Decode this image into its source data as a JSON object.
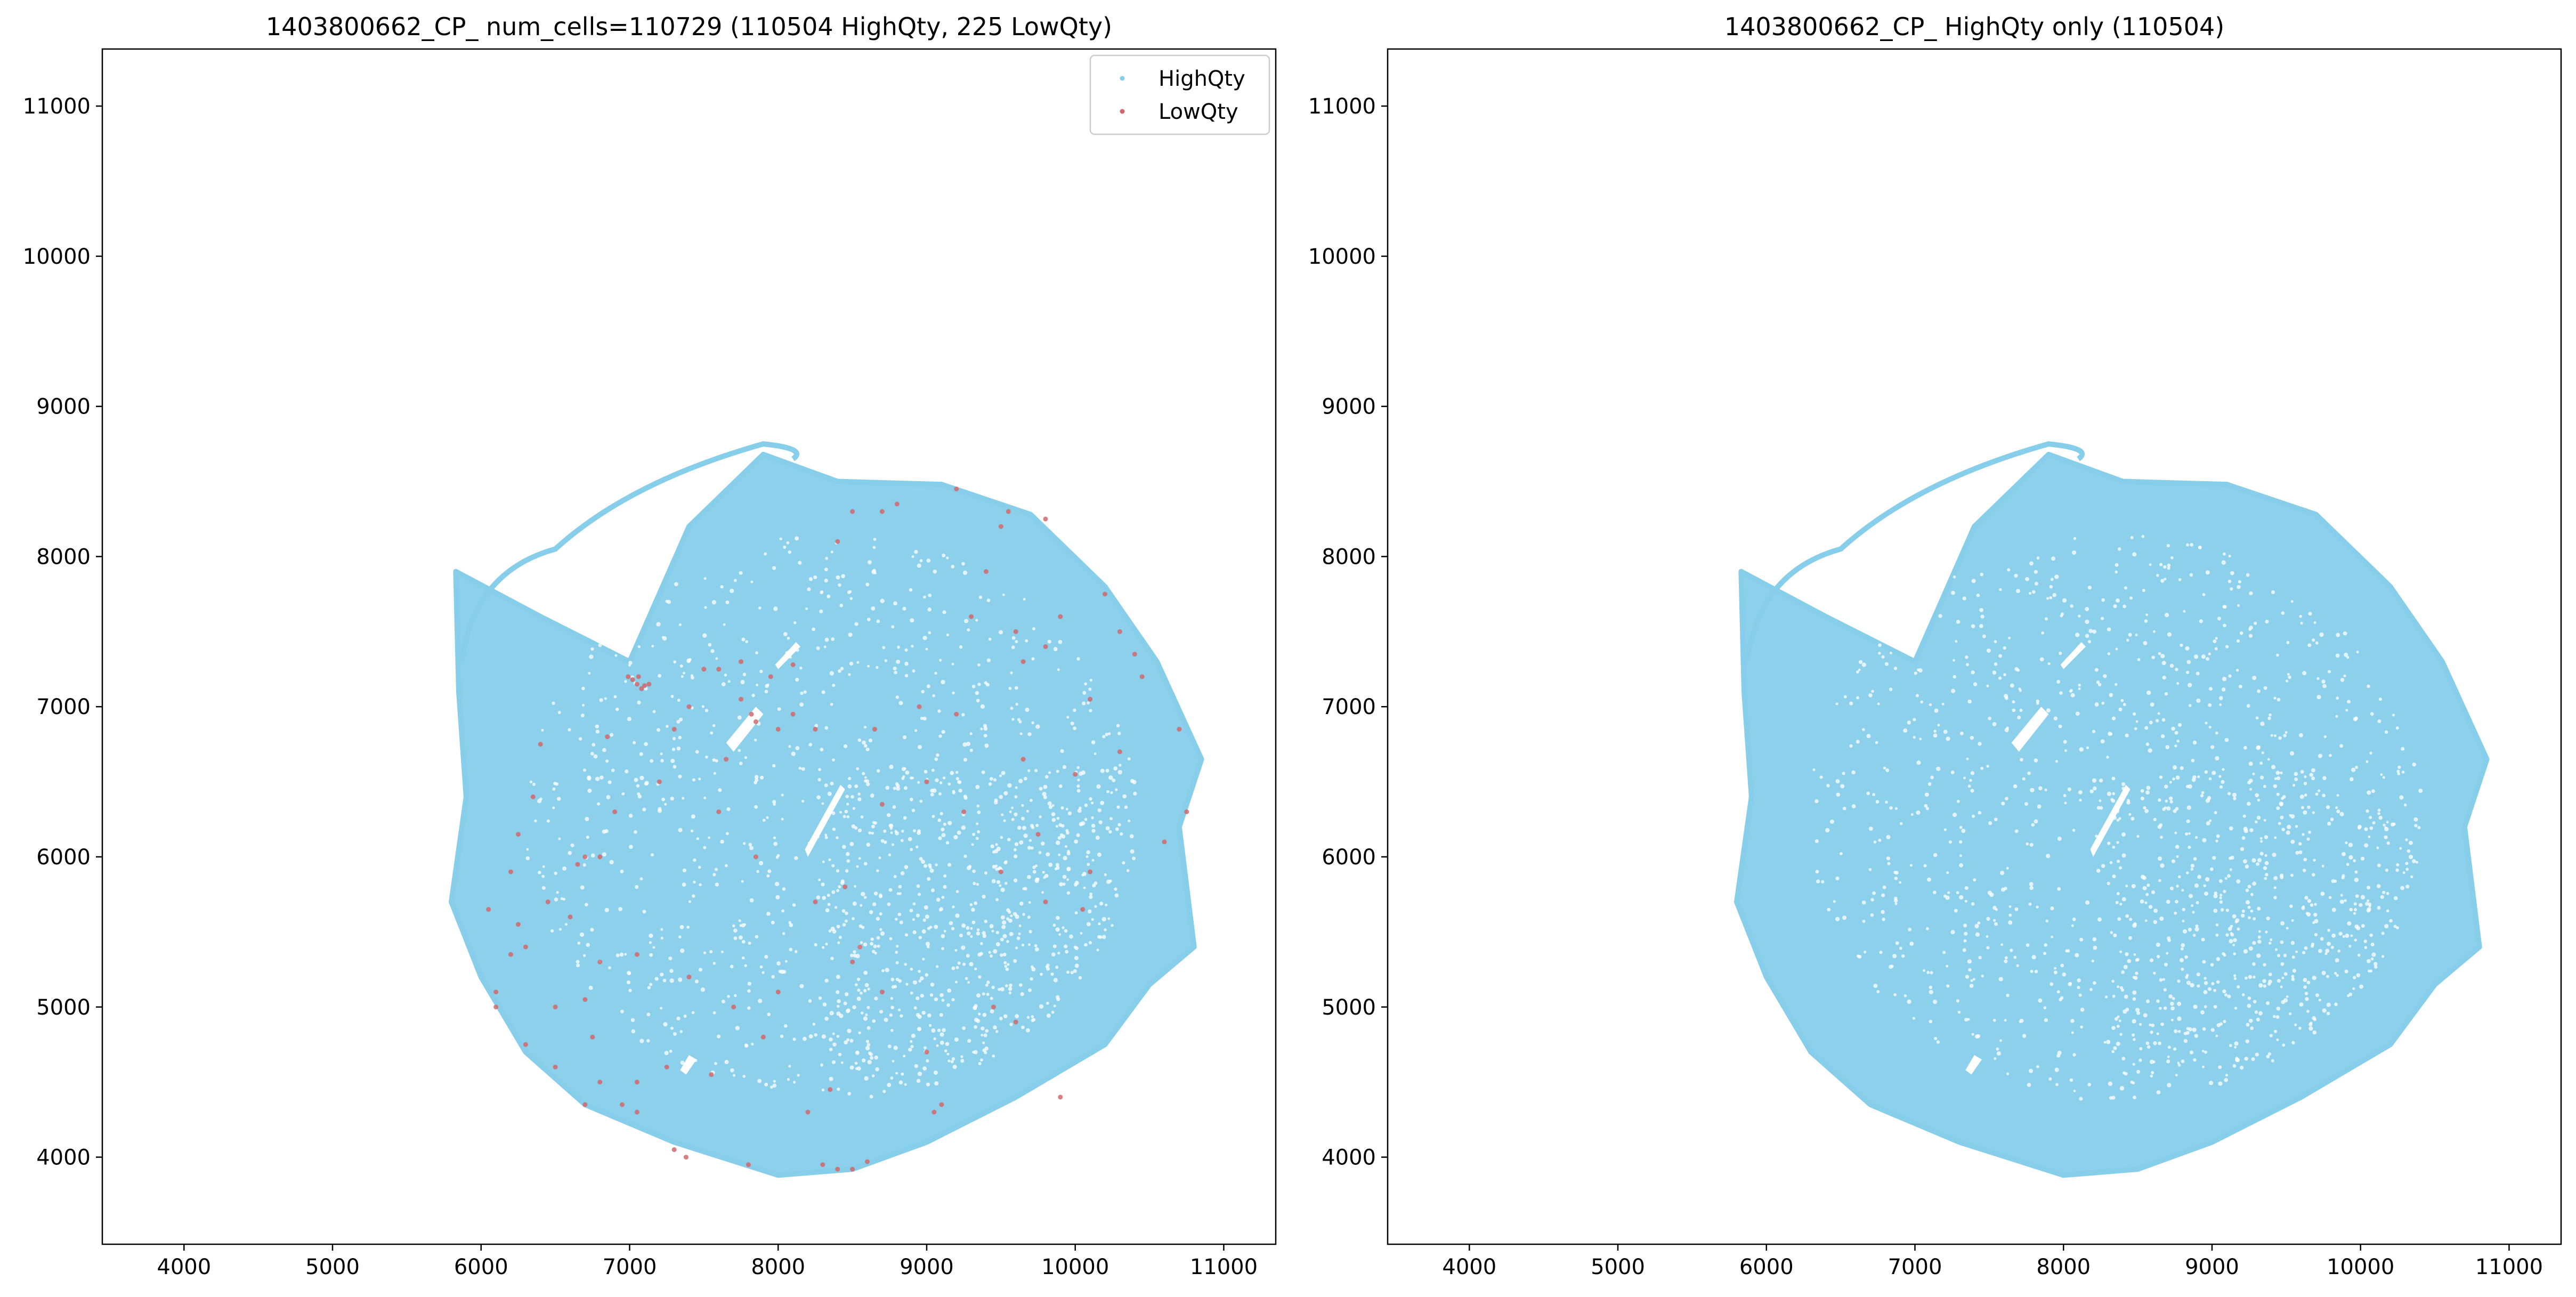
{
  "figure": {
    "background": "#ffffff"
  },
  "chart_data": [
    {
      "type": "scatter",
      "title": "1403800662_CP_ num_cells=110729 (110504 HighQty, 225 LowQty)",
      "xlabel": "",
      "ylabel": "",
      "xlim": [
        3450,
        11350
      ],
      "ylim": [
        3420,
        11380
      ],
      "xticks": [
        4000,
        5000,
        6000,
        7000,
        8000,
        9000,
        10000,
        11000
      ],
      "yticks": [
        4000,
        5000,
        6000,
        7000,
        8000,
        9000,
        10000,
        11000
      ],
      "grid": false,
      "legend": "top-right",
      "series": [
        {
          "name": "HighQty",
          "color": "#87ceeb",
          "count": 110504,
          "region": {
            "center": [
              8350,
              6260
            ],
            "radius_x": 2520,
            "radius_y": 2300,
            "outline_points": [
              [
                5830,
                7900
              ],
              [
                6400,
                7600
              ],
              [
                7000,
                7300
              ],
              [
                7400,
                8200
              ],
              [
                7900,
                8680
              ],
              [
                8400,
                8500
              ],
              [
                9100,
                8480
              ],
              [
                9700,
                8280
              ],
              [
                10200,
                7800
              ],
              [
                10550,
                7300
              ],
              [
                10850,
                6650
              ],
              [
                10700,
                6200
              ],
              [
                10800,
                5400
              ],
              [
                10500,
                5150
              ],
              [
                10200,
                4750
              ],
              [
                9600,
                4400
              ],
              [
                9000,
                4100
              ],
              [
                8500,
                3920
              ],
              [
                8000,
                3880
              ],
              [
                7300,
                4100
              ],
              [
                6700,
                4350
              ],
              [
                6300,
                4700
              ],
              [
                6000,
                5200
              ],
              [
                5800,
                5700
              ],
              [
                5900,
                6400
              ],
              [
                5850,
                7100
              ]
            ]
          }
        },
        {
          "name": "LowQty",
          "color": "#d1686c",
          "count": 225,
          "points": [
            [
              7050,
              7150
            ],
            [
              7080,
              7120
            ],
            [
              7020,
              7180
            ],
            [
              7100,
              7140
            ],
            [
              7060,
              7200
            ],
            [
              6990,
              7200
            ],
            [
              7130,
              7150
            ],
            [
              7500,
              7250
            ],
            [
              7600,
              7250
            ],
            [
              7750,
              7300
            ],
            [
              7950,
              7200
            ],
            [
              8100,
              7280
            ],
            [
              7750,
              7050
            ],
            [
              7850,
              6900
            ],
            [
              8000,
              6850
            ],
            [
              8100,
              6950
            ],
            [
              7820,
              6950
            ],
            [
              7400,
              7000
            ],
            [
              7300,
              6850
            ],
            [
              8250,
              6850
            ],
            [
              8650,
              6850
            ],
            [
              8400,
              8100
            ],
            [
              8500,
              8300
            ],
            [
              8700,
              8300
            ],
            [
              8800,
              8350
            ],
            [
              9200,
              8450
            ],
            [
              9500,
              8200
            ],
            [
              9550,
              8300
            ],
            [
              9800,
              8250
            ],
            [
              9400,
              7900
            ],
            [
              9300,
              7600
            ],
            [
              9600,
              7500
            ],
            [
              9800,
              7400
            ],
            [
              9650,
              7300
            ],
            [
              9900,
              7600
            ],
            [
              10200,
              7750
            ],
            [
              10300,
              7500
            ],
            [
              10400,
              7350
            ],
            [
              10450,
              7200
            ],
            [
              10100,
              7050
            ],
            [
              8950,
              7000
            ],
            [
              9200,
              6950
            ],
            [
              10700,
              6850
            ],
            [
              10750,
              6300
            ],
            [
              10600,
              6100
            ],
            [
              10100,
              5900
            ],
            [
              10050,
              5650
            ],
            [
              9800,
              5700
            ],
            [
              9500,
              5900
            ],
            [
              8500,
              5300
            ],
            [
              8700,
              5100
            ],
            [
              8550,
              5400
            ],
            [
              9450,
              5000
            ],
            [
              9600,
              4900
            ],
            [
              9000,
              4700
            ],
            [
              9900,
              4400
            ],
            [
              9100,
              4350
            ],
            [
              9050,
              4300
            ],
            [
              8350,
              4450
            ],
            [
              8200,
              4300
            ],
            [
              7550,
              4550
            ],
            [
              7900,
              4800
            ],
            [
              7700,
              5000
            ],
            [
              7400,
              5200
            ],
            [
              7050,
              5350
            ],
            [
              6800,
              5300
            ],
            [
              6600,
              5600
            ],
            [
              6450,
              5700
            ],
            [
              6300,
              5400
            ],
            [
              6050,
              5650
            ],
            [
              6200,
              5900
            ],
            [
              6350,
              6400
            ],
            [
              6250,
              6150
            ],
            [
              6650,
              5950
            ],
            [
              6700,
              6000
            ],
            [
              6800,
              6000
            ],
            [
              6900,
              6300
            ],
            [
              7600,
              6300
            ],
            [
              7850,
              6000
            ],
            [
              8250,
              5700
            ],
            [
              6700,
              5050
            ],
            [
              6500,
              5000
            ],
            [
              6300,
              4750
            ],
            [
              6100,
              5000
            ],
            [
              6500,
              4600
            ],
            [
              6700,
              4350
            ],
            [
              6950,
              4350
            ],
            [
              6800,
              4500
            ],
            [
              7050,
              4500
            ],
            [
              7250,
              4600
            ],
            [
              7300,
              4050
            ],
            [
              7380,
              4000
            ],
            [
              7800,
              3950
            ],
            [
              8300,
              3950
            ],
            [
              8400,
              3920
            ],
            [
              8500,
              3920
            ],
            [
              8600,
              3970
            ],
            [
              7050,
              4300
            ],
            [
              6750,
              4800
            ],
            [
              8000,
              5100
            ],
            [
              8450,
              5800
            ],
            [
              8700,
              6350
            ],
            [
              9000,
              6500
            ],
            [
              9250,
              6300
            ],
            [
              9750,
              6150
            ],
            [
              10000,
              6550
            ],
            [
              10300,
              6700
            ],
            [
              9650,
              6650
            ],
            [
              6400,
              6750
            ],
            [
              6850,
              6800
            ],
            [
              7200,
              6500
            ],
            [
              7650,
              6650
            ],
            [
              6200,
              5350
            ],
            [
              6100,
              5100
            ],
            [
              6250,
              5550
            ]
          ]
        }
      ]
    },
    {
      "type": "scatter",
      "title": "1403800662_CP_ HighQty only (110504)",
      "xlabel": "",
      "ylabel": "",
      "xlim": [
        3450,
        11350
      ],
      "ylim": [
        3420,
        11380
      ],
      "xticks": [
        4000,
        5000,
        6000,
        7000,
        8000,
        9000,
        10000,
        11000
      ],
      "yticks": [
        4000,
        5000,
        6000,
        7000,
        8000,
        9000,
        10000,
        11000
      ],
      "grid": false,
      "legend": "none",
      "series": [
        {
          "color": "#87ceeb",
          "count": 110504,
          "region": {
            "center": [
              8350,
              6260
            ],
            "radius_x": 2520,
            "radius_y": 2300,
            "outline_points": [
              [
                5830,
                7900
              ],
              [
                6400,
                7600
              ],
              [
                7000,
                7300
              ],
              [
                7400,
                8200
              ],
              [
                7900,
                8680
              ],
              [
                8400,
                8500
              ],
              [
                9100,
                8480
              ],
              [
                9700,
                8280
              ],
              [
                10200,
                7800
              ],
              [
                10550,
                7300
              ],
              [
                10850,
                6650
              ],
              [
                10700,
                6200
              ],
              [
                10800,
                5400
              ],
              [
                10500,
                5150
              ],
              [
                10200,
                4750
              ],
              [
                9600,
                4400
              ],
              [
                9000,
                4100
              ],
              [
                8500,
                3920
              ],
              [
                8000,
                3880
              ],
              [
                7300,
                4100
              ],
              [
                6700,
                4350
              ],
              [
                6300,
                4700
              ],
              [
                6000,
                5200
              ],
              [
                5800,
                5700
              ],
              [
                5900,
                6400
              ],
              [
                5850,
                7100
              ]
            ]
          }
        }
      ]
    }
  ]
}
